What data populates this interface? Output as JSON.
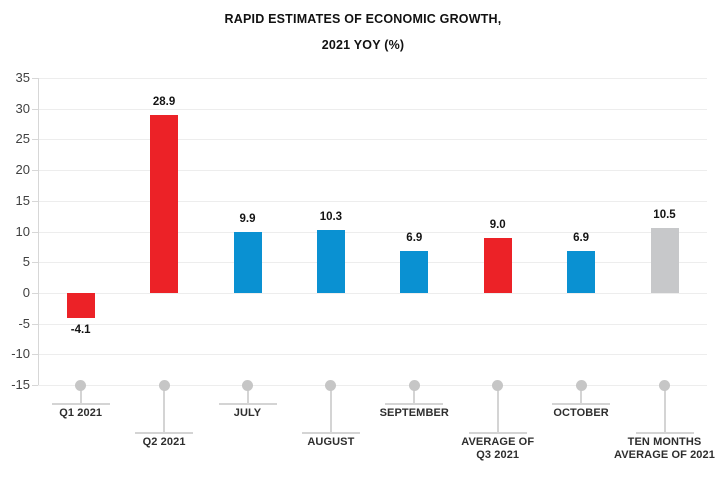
{
  "title": {
    "line1": "RAPID ESTIMATES OF ECONOMIC GROWTH,",
    "line2": "2021 YOY  (%)"
  },
  "chart_data": {
    "type": "bar",
    "title": "RAPID ESTIMATES OF ECONOMIC GROWTH, 2021 YOY (%)",
    "xlabel": "",
    "ylabel": "",
    "categories": [
      "Q1 2021",
      "Q2 2021",
      "JULY",
      "AUGUST",
      "SEPTEMBER",
      "AVERAGE OF\nQ3 2021",
      "OCTOBER",
      "TEN MONTHS\nAVERAGE OF 2021"
    ],
    "values": [
      -4.1,
      28.9,
      9.9,
      10.3,
      6.9,
      9.0,
      6.9,
      10.5
    ],
    "value_labels": [
      "-4.1",
      "28.9",
      "9.9",
      "10.3",
      "6.9",
      "9.0",
      "6.9",
      "10.5"
    ],
    "bar_colors": [
      "red",
      "red",
      "blue",
      "blue",
      "blue",
      "red",
      "blue",
      "gray"
    ],
    "palette": {
      "red": "#EC2227",
      "blue": "#0A91D2",
      "gray": "#C7C8CA"
    },
    "ylim": [
      -15,
      35
    ],
    "ytick_step": 5,
    "yticks": [
      35,
      30,
      25,
      20,
      15,
      10,
      5,
      0,
      -5,
      -10,
      -15
    ],
    "grid": true,
    "legend": "none",
    "grid_color": "#EDEDED",
    "axis_color": "#D7D7D7",
    "marker_dot_color": "#C6C6C6",
    "marker_line_color": "#D4D4D4"
  }
}
